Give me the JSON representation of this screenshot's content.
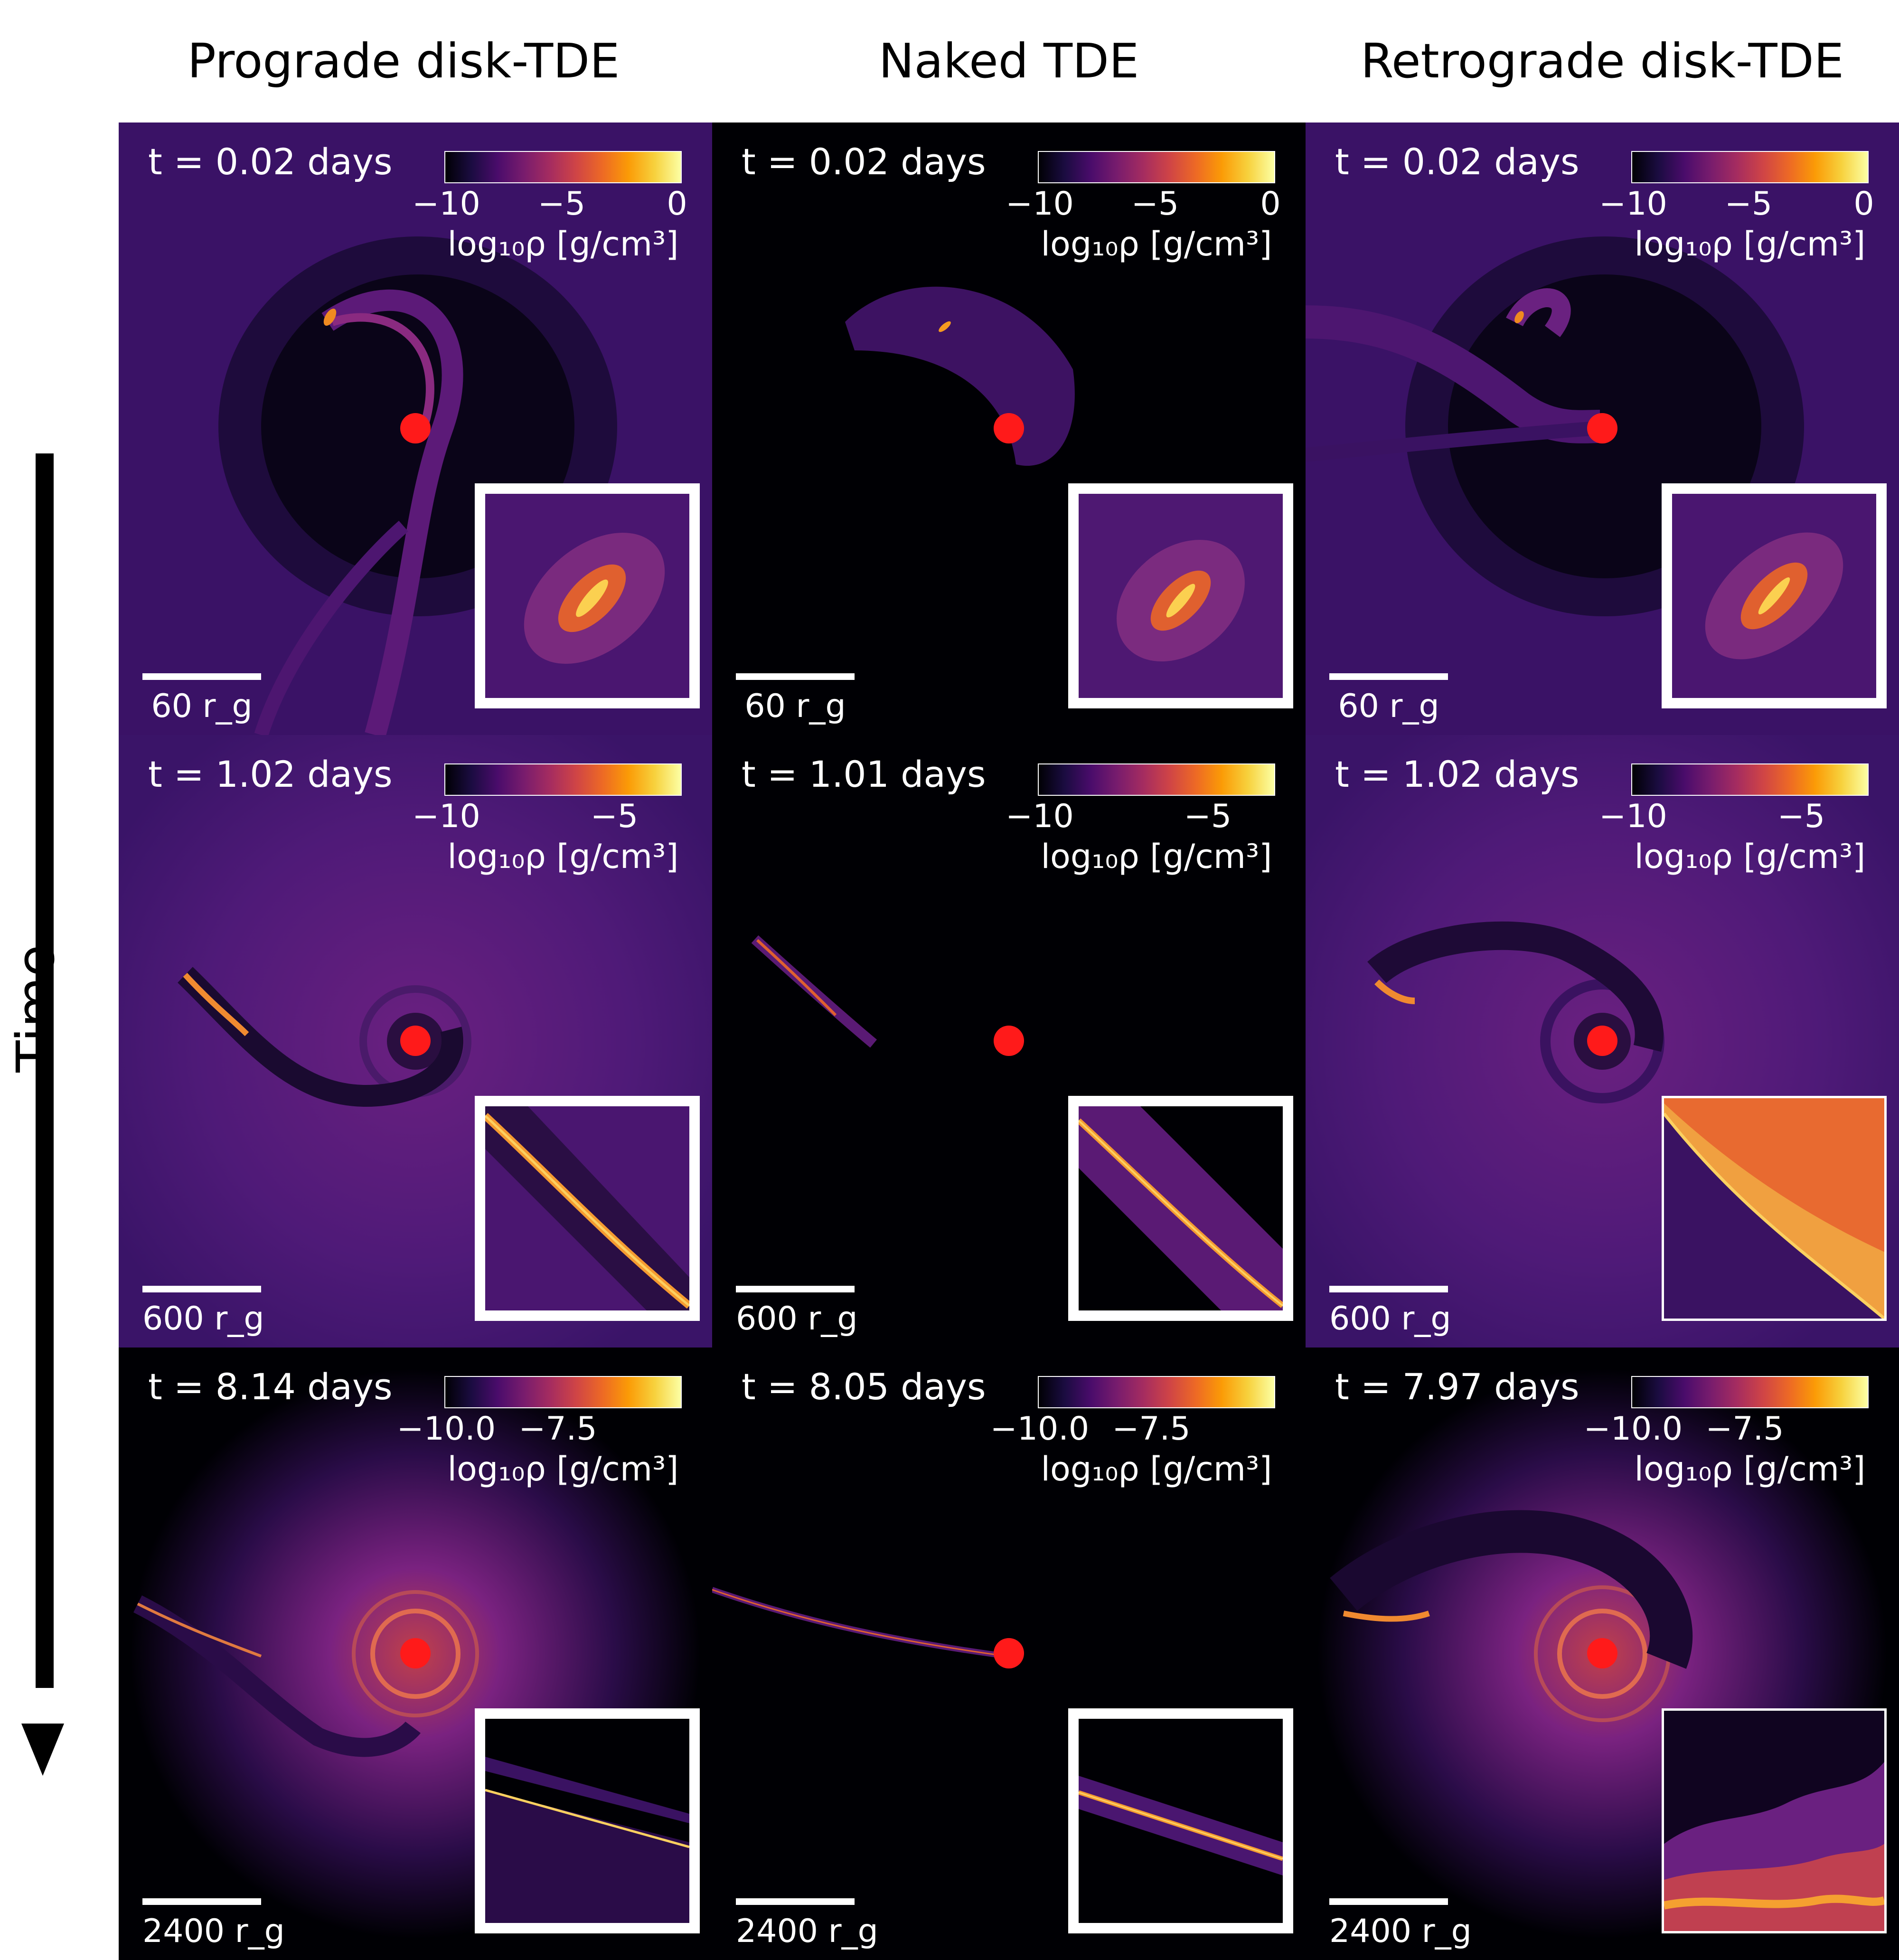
{
  "columns": [
    "Prograde disk-TDE",
    "Naked TDE",
    "Retrograde disk-TDE"
  ],
  "time_axis_label": "Time",
  "colorbar_label": "log₁₀ρ [g/cm³]",
  "colormap_colors": [
    "#000004",
    "#4a0c6b",
    "#a52c60",
    "#ed6925",
    "#fcffa4"
  ],
  "black_hole_color": "#ff1a1a",
  "rows": [
    {
      "scale_bar": "60 r_g",
      "colorbar_ticks": [
        "−10",
        "−5",
        "0"
      ],
      "panels": [
        {
          "time": "t = 0.02 days"
        },
        {
          "time": "t = 0.02 days"
        },
        {
          "time": "t = 0.02 days"
        }
      ]
    },
    {
      "scale_bar": "600 r_g",
      "colorbar_ticks": [
        "−10",
        "−5"
      ],
      "panels": [
        {
          "time": "t = 1.02 days"
        },
        {
          "time": "t = 1.01 days"
        },
        {
          "time": "t = 1.02 days"
        }
      ]
    },
    {
      "scale_bar": "2400 r_g",
      "colorbar_ticks": [
        "−10.0",
        "−7.5"
      ],
      "panels": [
        {
          "time": "t = 8.14 days"
        },
        {
          "time": "t = 8.05 days"
        },
        {
          "time": "t = 7.97 days"
        }
      ]
    }
  ]
}
